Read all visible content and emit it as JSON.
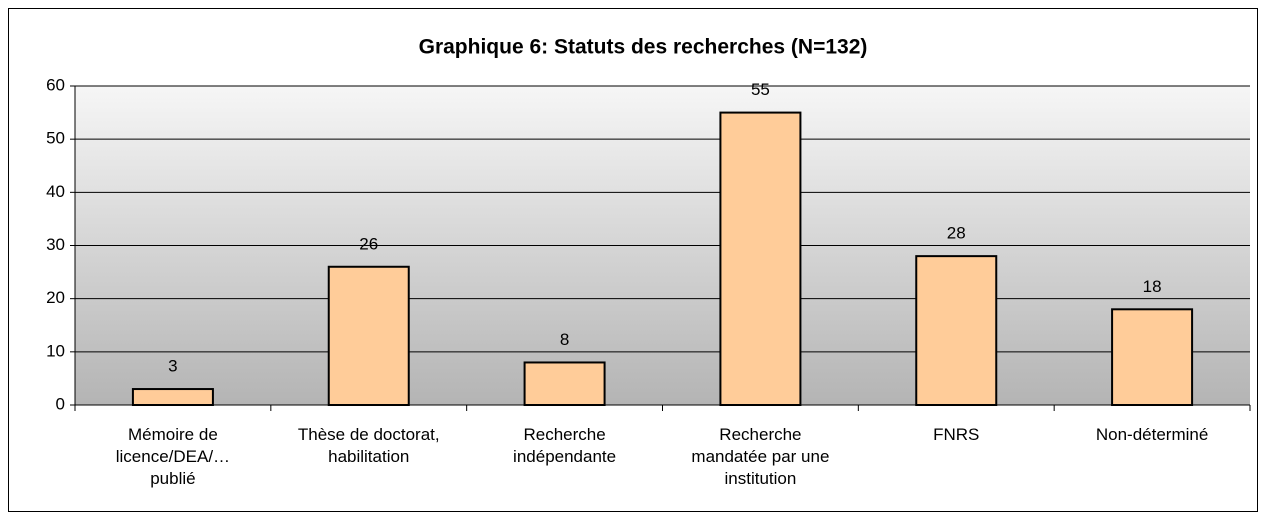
{
  "chart_data": {
    "type": "bar",
    "title": "Graphique 6: Statuts des recherches (N=132)",
    "categories": [
      "Mémoire de\nlicence/DEA/…\npublié",
      "Thèse de doctorat,\nhabilitation",
      "Recherche\nindépendante",
      "Recherche\nmandatée par une\ninstitution",
      "FNRS",
      "Non-déterminé"
    ],
    "values": [
      3,
      26,
      8,
      55,
      28,
      18
    ],
    "color": "#ffcc99",
    "ylim": [
      0,
      60
    ],
    "yticks": [
      0,
      10,
      20,
      30,
      40,
      50,
      60
    ],
    "grid": true
  }
}
